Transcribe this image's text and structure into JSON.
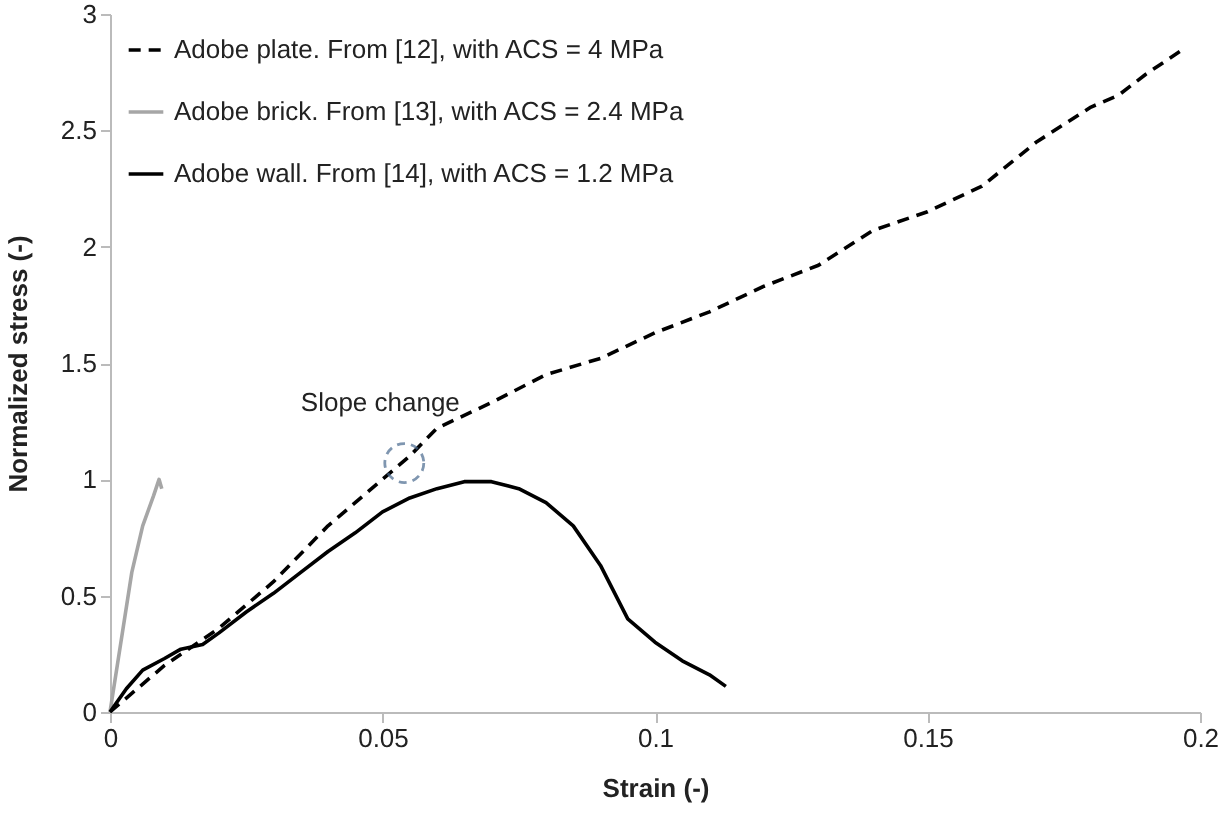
{
  "chart_data": {
    "type": "line",
    "xlabel": "Strain (-)",
    "ylabel": "Normalized stress (-)",
    "xlim": [
      0,
      0.2
    ],
    "xticks": [
      0,
      0.05,
      0.1,
      0.15,
      0.2
    ],
    "ylim": [
      0,
      3
    ],
    "yticks": [
      0,
      0.5,
      1,
      1.5,
      2,
      2.5,
      3
    ],
    "grid": false,
    "legend": "top left",
    "marker": "none",
    "annotations": [
      {
        "text": "Slope change",
        "x": 0.054,
        "y": 1.07
      }
    ],
    "series": [
      {
        "name": "Adobe plate. From [12], with ACS = 4 MPa",
        "color": "#000000",
        "line_style": "dashed",
        "x": [
          0,
          0.01,
          0.02,
          0.03,
          0.04,
          0.05,
          0.055,
          0.06,
          0.07,
          0.08,
          0.09,
          0.1,
          0.11,
          0.12,
          0.13,
          0.14,
          0.15,
          0.16,
          0.17,
          0.18,
          0.185,
          0.19,
          0.197
        ],
        "values": [
          0,
          0.2,
          0.36,
          0.56,
          0.8,
          1.0,
          1.1,
          1.22,
          1.33,
          1.45,
          1.52,
          1.63,
          1.72,
          1.83,
          1.92,
          2.07,
          2.15,
          2.26,
          2.45,
          2.6,
          2.65,
          2.74,
          2.85
        ]
      },
      {
        "name": "Adobe brick. From [13], with ACS = 2.4 MPa",
        "color": "#a6a6a6",
        "line_style": "solid",
        "x": [
          0,
          0.002,
          0.004,
          0.006,
          0.008,
          0.009,
          0.0095
        ],
        "values": [
          0,
          0.3,
          0.6,
          0.8,
          0.93,
          1.0,
          0.96
        ]
      },
      {
        "name": "Adobe wall. From [14], with ACS = 1.2 MPa",
        "color": "#000000",
        "line_style": "solid",
        "x": [
          0,
          0.003,
          0.006,
          0.01,
          0.013,
          0.017,
          0.02,
          0.025,
          0.03,
          0.035,
          0.04,
          0.045,
          0.05,
          0.055,
          0.06,
          0.065,
          0.07,
          0.075,
          0.08,
          0.085,
          0.09,
          0.095,
          0.1,
          0.105,
          0.11,
          0.113
        ],
        "values": [
          0,
          0.1,
          0.18,
          0.23,
          0.27,
          0.29,
          0.34,
          0.43,
          0.51,
          0.6,
          0.69,
          0.77,
          0.86,
          0.92,
          0.96,
          0.99,
          0.99,
          0.96,
          0.9,
          0.8,
          0.63,
          0.4,
          0.3,
          0.22,
          0.16,
          0.11
        ]
      }
    ]
  }
}
